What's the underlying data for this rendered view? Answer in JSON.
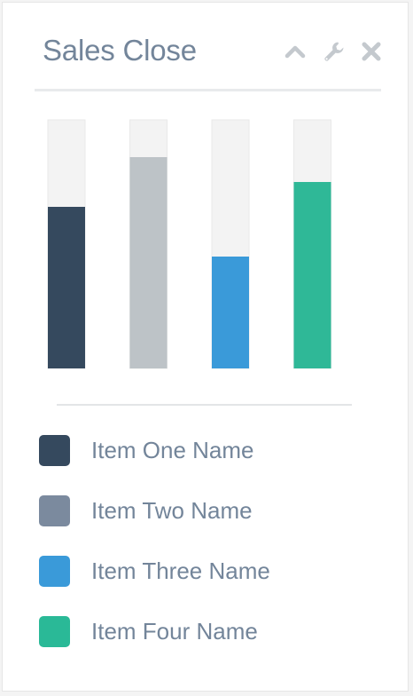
{
  "widget": {
    "title": "Sales Close",
    "tools": [
      {
        "name": "collapse-icon",
        "glyph": "chevron-up"
      },
      {
        "name": "settings-icon",
        "glyph": "wrench"
      },
      {
        "name": "close-icon",
        "glyph": "times"
      }
    ]
  },
  "chart_data": {
    "type": "bar",
    "title": "Sales Close",
    "categories": [
      "Item One Name",
      "Item Two Name",
      "Item Three Name",
      "Item Four Name"
    ],
    "values": [
      65,
      85,
      45,
      75
    ],
    "ylim": [
      0,
      100
    ],
    "colors": [
      "#35495e",
      "#bdc3c7",
      "#3a9ad9",
      "#2fb897"
    ],
    "track_color": "#f3f3f3",
    "grid": false,
    "legend_position": "bottom"
  },
  "legend": {
    "items": [
      {
        "label": "Item One Name",
        "color": "#35495e"
      },
      {
        "label": "Item Two Name",
        "color": "#7b8a9e"
      },
      {
        "label": "Item Three Name",
        "color": "#3a9ad9"
      },
      {
        "label": "Item Four Name",
        "color": "#2ab997"
      }
    ]
  }
}
